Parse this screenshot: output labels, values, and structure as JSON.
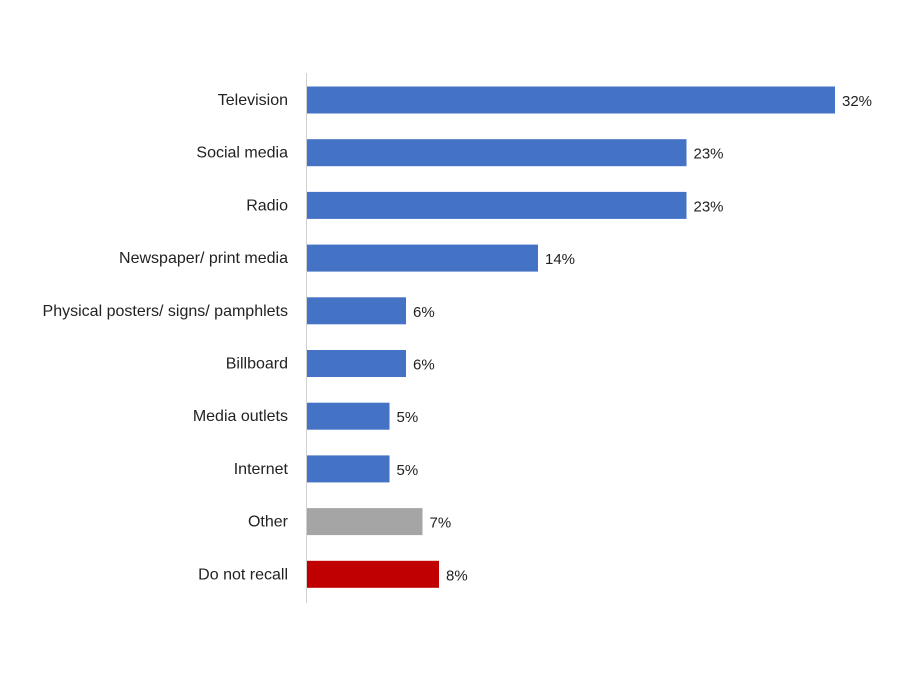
{
  "chart_data": {
    "type": "bar",
    "orientation": "horizontal",
    "title": "",
    "xlabel": "",
    "ylabel": "",
    "xlim": [
      0,
      32
    ],
    "grid": false,
    "categories": [
      "Television",
      "Social media",
      "Radio",
      "Newspaper/ print media",
      "Physical posters/ signs/ pamphlets",
      "Billboard",
      "Media outlets",
      "Internet",
      "Other",
      "Do not recall"
    ],
    "values": [
      32,
      23,
      23,
      14,
      6,
      6,
      5,
      5,
      7,
      8
    ],
    "labels": [
      "32%",
      "23%",
      "23%",
      "14%",
      "6%",
      "6%",
      "5%",
      "5%",
      "7%",
      "8%"
    ],
    "colors": [
      "#4472C4",
      "#4472C4",
      "#4472C4",
      "#4472C4",
      "#4472C4",
      "#4472C4",
      "#4472C4",
      "#4472C4",
      "#A5A5A5",
      "#C00000"
    ]
  }
}
